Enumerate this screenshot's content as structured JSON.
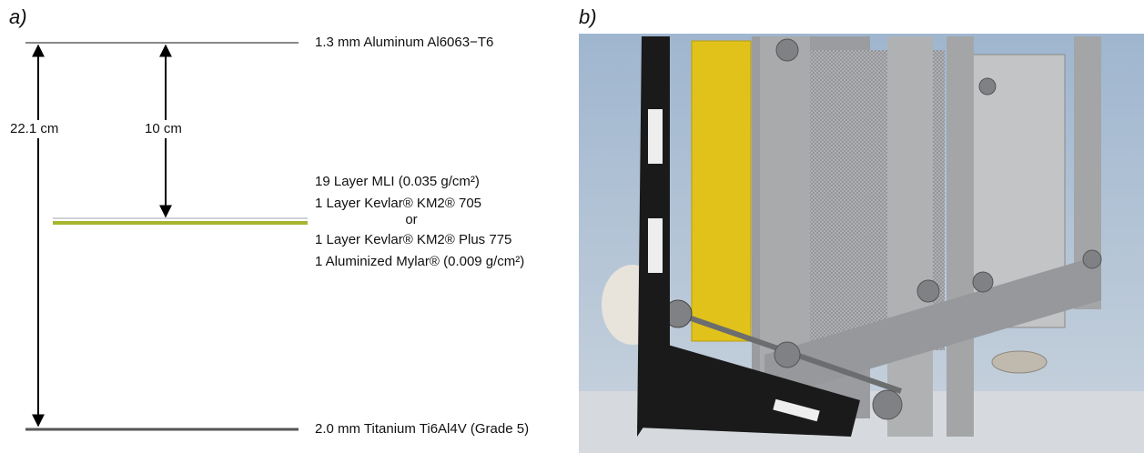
{
  "panel_a": {
    "label": "a)",
    "top_layer": "1.3 mm Aluminum Al6063−T6",
    "bottom_layer": "2.0 mm Titanium Ti6Al4V (Grade 5)",
    "total_spacing": "22.1 cm",
    "middle_spacing": "10 cm",
    "middle_layer": [
      "19 Layer MLI (0.035 g/cm²)",
      "1 Layer Kevlar® KM2® 705",
      "or",
      "1 Layer Kevlar® KM2® Plus 775",
      "1 Aluminized Mylar® (0.009 g/cm²)"
    ]
  },
  "panel_b": {
    "label": "b)"
  }
}
